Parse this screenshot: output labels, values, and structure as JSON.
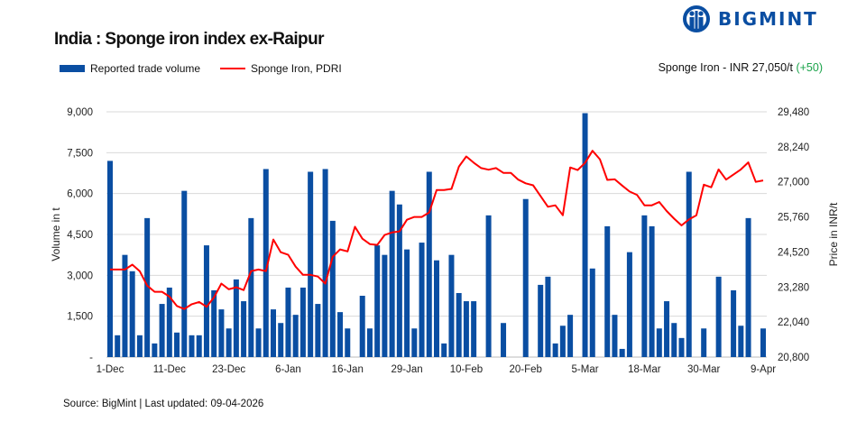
{
  "header": {
    "title": "India : Sponge iron index ex-Raipur",
    "brand": "BIGMINT",
    "price_label": "Sponge Iron - INR 27,050/t",
    "price_change": "(+50)",
    "change_color": "#1aa34a"
  },
  "footer": {
    "source": "Source: BigMint | Last updated: 09-04-2026"
  },
  "chart_data": {
    "type": "bar+line",
    "title": "India : Sponge iron index ex-Raipur",
    "legend_position": "top-left",
    "grid": true,
    "ylabel_left": "Volume in t",
    "ylabel_right": "Price in INR/t",
    "ylim_left": [
      0,
      9000
    ],
    "ylim_right": [
      20800,
      29480
    ],
    "yticks_left": [
      "-",
      "1,500",
      "3,000",
      "4,500",
      "6,000",
      "7,500",
      "9,000"
    ],
    "yticks_right": [
      "20,800",
      "22,040",
      "23,280",
      "24,520",
      "25,760",
      "27,000",
      "28,240",
      "29,480"
    ],
    "xtick_labels": [
      "1-Dec",
      "11-Dec",
      "23-Dec",
      "6-Jan",
      "16-Jan",
      "29-Jan",
      "10-Feb",
      "20-Feb",
      "5-Mar",
      "18-Mar",
      "30-Mar",
      "9-Apr"
    ],
    "xtick_every": 8,
    "series": [
      {
        "name": "Reported trade volume",
        "type": "bar",
        "axis": "left",
        "color": "#0a4ea2",
        "values": [
          7200,
          800,
          3750,
          3150,
          800,
          5100,
          500,
          1950,
          2550,
          900,
          6100,
          800,
          800,
          4100,
          2450,
          1750,
          1050,
          2850,
          2050,
          5100,
          1050,
          6900,
          1750,
          1250,
          2550,
          1550,
          2550,
          6800,
          1950,
          6900,
          5000,
          1650,
          1050,
          0,
          2250,
          1050,
          4100,
          3750,
          6100,
          5600,
          3950,
          1050,
          4200,
          6800,
          3550,
          500,
          3750,
          2350,
          2050,
          2050,
          0,
          5200,
          0,
          1250,
          0,
          0,
          5800,
          0,
          2650,
          2950,
          500,
          1150,
          1550,
          0,
          8950,
          3250,
          0,
          4800,
          1550,
          300,
          3850,
          0,
          5200,
          4800,
          1050,
          2050,
          1250,
          700,
          6800,
          0,
          1050,
          0,
          2950,
          0,
          2450,
          1150,
          5100,
          0,
          1050
        ]
      },
      {
        "name": "Sponge Iron, PDRI",
        "type": "line",
        "axis": "right",
        "color": "#ff0000",
        "values": [
          23900,
          23900,
          23900,
          24070,
          23840,
          23330,
          23110,
          23110,
          22940,
          22610,
          22500,
          22670,
          22750,
          22580,
          22910,
          23400,
          23200,
          23270,
          23170,
          23840,
          23900,
          23840,
          24960,
          24510,
          24420,
          24000,
          23710,
          23710,
          23650,
          23400,
          24350,
          24610,
          24540,
          25410,
          24990,
          24800,
          24770,
          25120,
          25210,
          25250,
          25660,
          25760,
          25760,
          25920,
          26710,
          26710,
          26750,
          27540,
          27900,
          27680,
          27490,
          27430,
          27490,
          27320,
          27320,
          27080,
          26950,
          26880,
          26500,
          26120,
          26170,
          25820,
          27510,
          27420,
          27670,
          28100,
          27800,
          27070,
          27090,
          26870,
          26660,
          26540,
          26170,
          26170,
          26290,
          25970,
          25700,
          25460,
          25670,
          25820,
          26900,
          26810,
          27440,
          27080,
          27260,
          27440,
          27690,
          27000,
          27050
        ]
      }
    ]
  }
}
